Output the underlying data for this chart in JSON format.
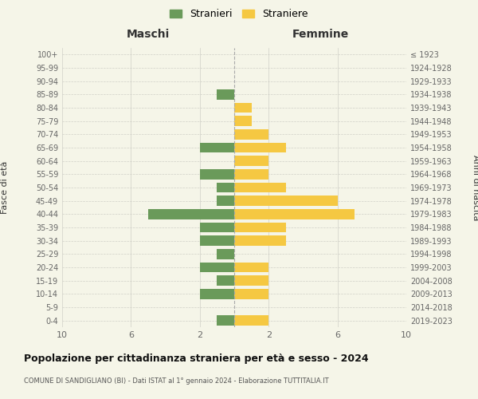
{
  "age_groups": [
    "100+",
    "95-99",
    "90-94",
    "85-89",
    "80-84",
    "75-79",
    "70-74",
    "65-69",
    "60-64",
    "55-59",
    "50-54",
    "45-49",
    "40-44",
    "35-39",
    "30-34",
    "25-29",
    "20-24",
    "15-19",
    "10-14",
    "5-9",
    "0-4"
  ],
  "birth_years": [
    "≤ 1923",
    "1924-1928",
    "1929-1933",
    "1934-1938",
    "1939-1943",
    "1944-1948",
    "1949-1953",
    "1954-1958",
    "1959-1963",
    "1964-1968",
    "1969-1973",
    "1974-1978",
    "1979-1983",
    "1984-1988",
    "1989-1993",
    "1994-1998",
    "1999-2003",
    "2004-2008",
    "2009-2013",
    "2014-2018",
    "2019-2023"
  ],
  "maschi": [
    0,
    0,
    0,
    1,
    0,
    0,
    0,
    2,
    0,
    2,
    1,
    1,
    5,
    2,
    2,
    1,
    2,
    1,
    2,
    0,
    1
  ],
  "femmine": [
    0,
    0,
    0,
    0,
    1,
    1,
    2,
    3,
    2,
    2,
    3,
    6,
    7,
    3,
    3,
    0,
    2,
    2,
    2,
    0,
    2
  ],
  "color_maschi": "#6a9a5a",
  "color_femmine": "#f5c842",
  "bg_color": "#f5f5e8",
  "grid_color": "#d0d0c8",
  "title": "Popolazione per cittadinanza straniera per età e sesso - 2024",
  "subtitle": "COMUNE DI SANDIGLIANO (BI) - Dati ISTAT al 1° gennaio 2024 - Elaborazione TUTTITALIA.IT",
  "xlabel_left": "Maschi",
  "xlabel_right": "Femmine",
  "ylabel_left": "Fasce di età",
  "ylabel_right": "Anni di nascita",
  "legend_maschi": "Stranieri",
  "legend_femmine": "Straniere",
  "xlim": 10,
  "dashed_line_color": "#aaaaaa"
}
